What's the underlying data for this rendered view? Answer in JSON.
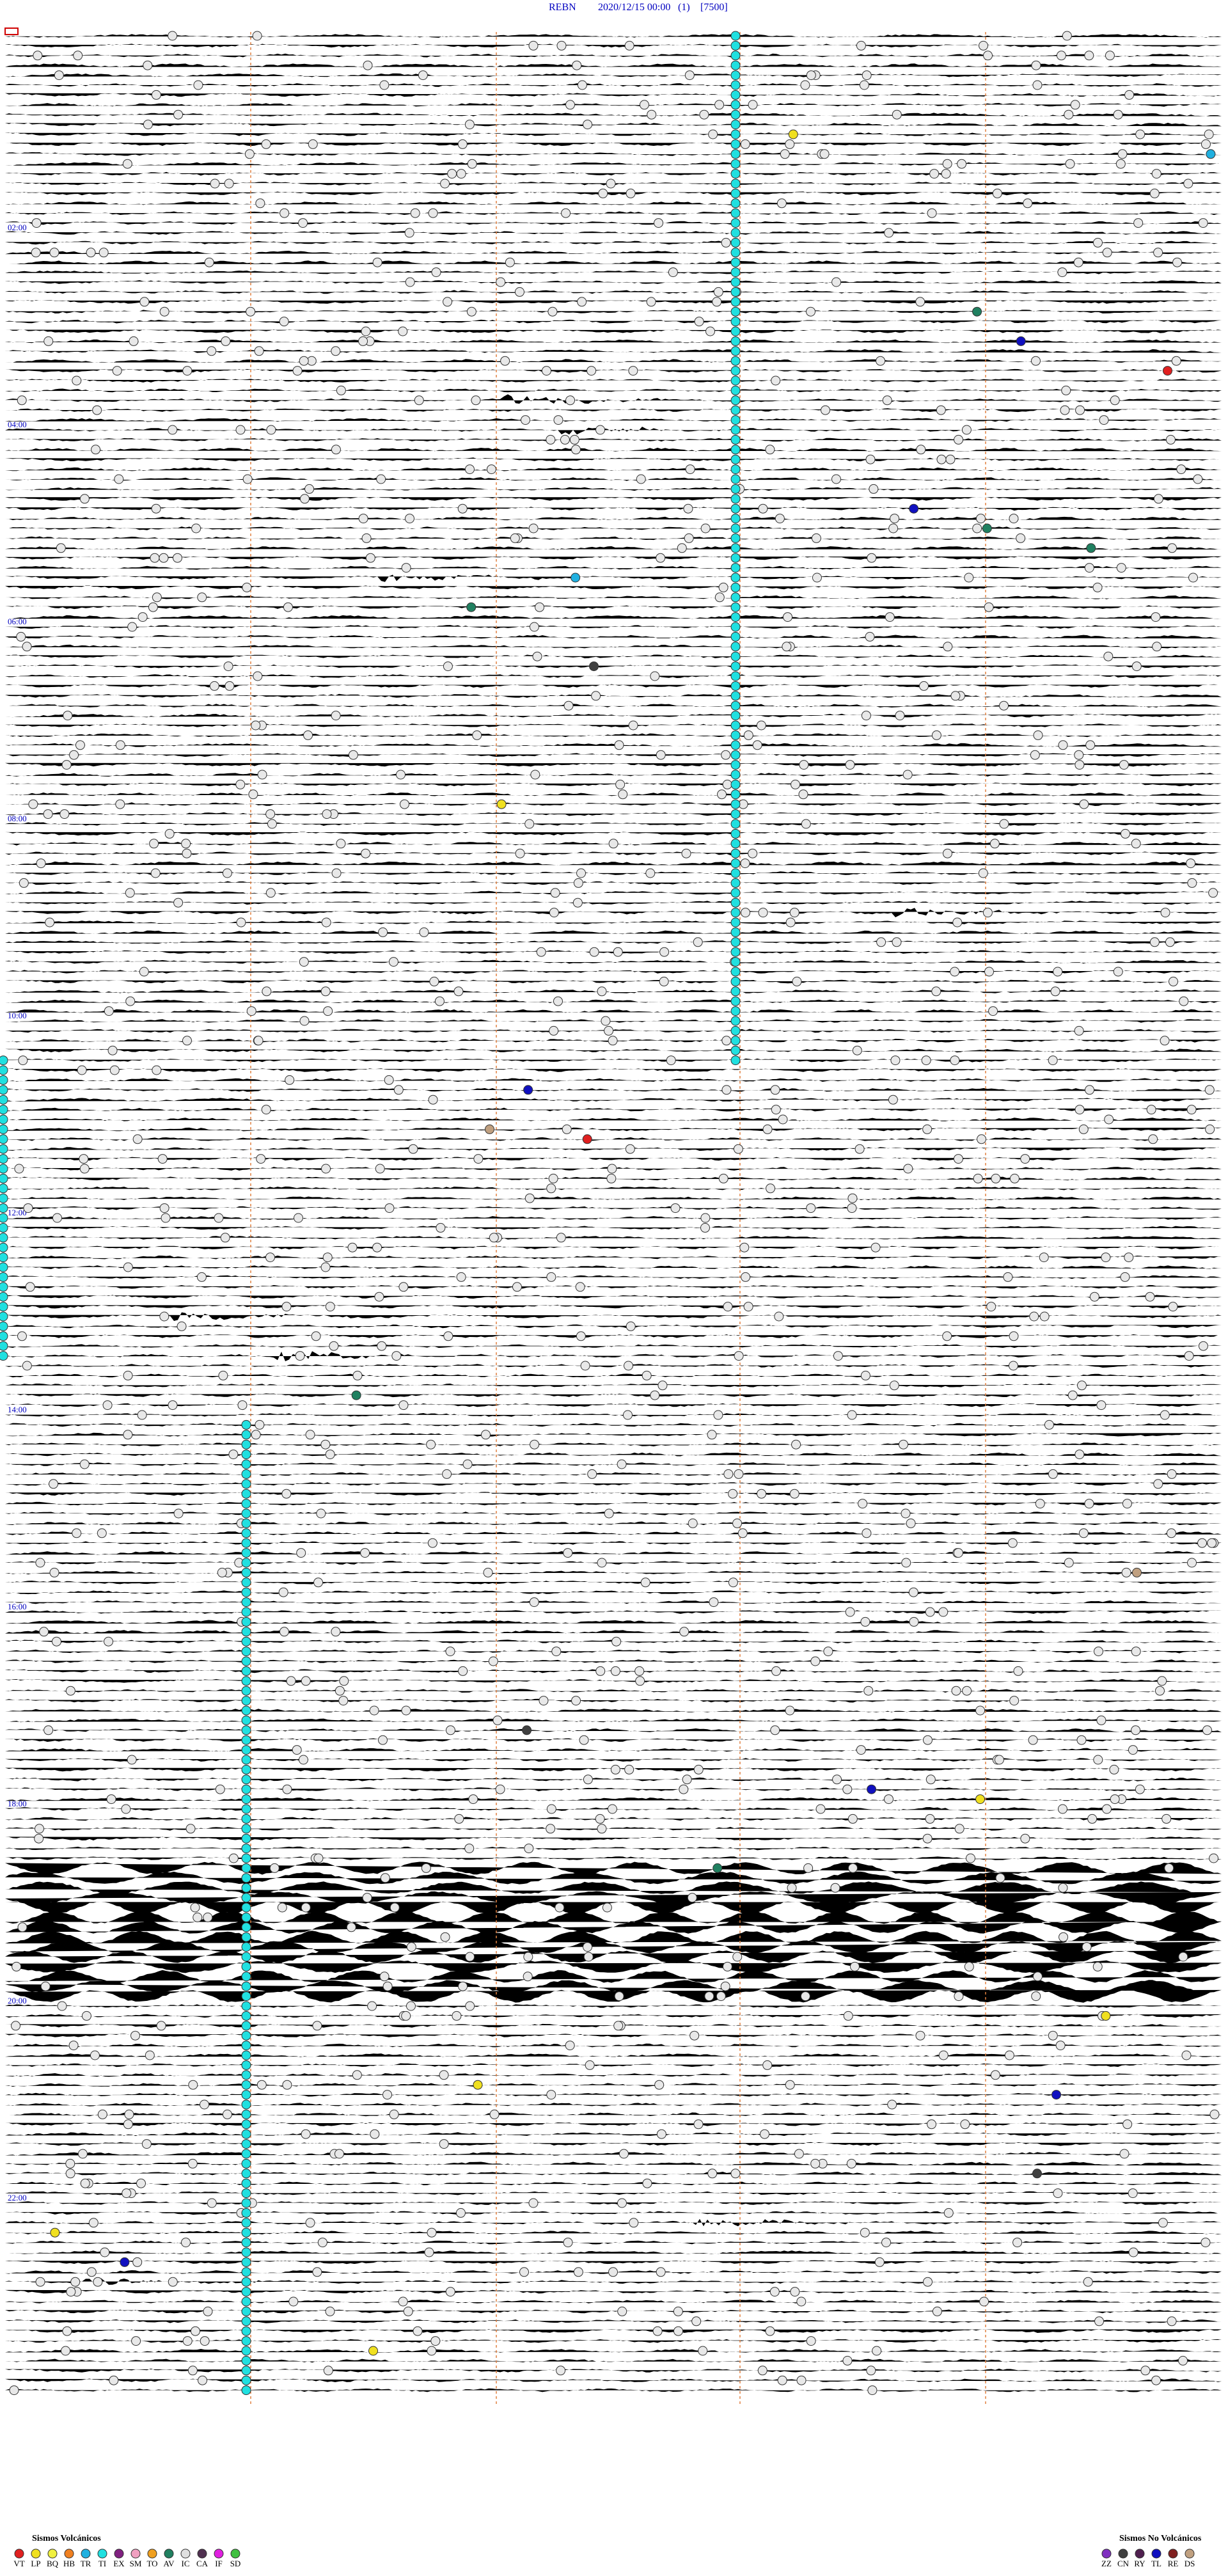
{
  "header": {
    "station": "REBN",
    "datetime": "2020/12/15 00:00",
    "channel": "(1)",
    "scale": "[7500]"
  },
  "time_labels": [
    "02:00",
    "04:00",
    "06:00",
    "08:00",
    "10:00",
    "12:00",
    "14:00",
    "16:00",
    "18:00",
    "20:00",
    "22:00"
  ],
  "legend": {
    "volcanic": {
      "title": "Sismos Volcánicos",
      "items": [
        {
          "code": "VT",
          "color": "#e02020"
        },
        {
          "code": "LP",
          "color": "#f0e020"
        },
        {
          "code": "BQ",
          "color": "#f0f040"
        },
        {
          "code": "HB",
          "color": "#f08020"
        },
        {
          "code": "TR",
          "color": "#20b0e0"
        },
        {
          "code": "TI",
          "color": "#20e0e0"
        },
        {
          "code": "EX",
          "color": "#802080"
        },
        {
          "code": "SM",
          "color": "#f0a0c0"
        },
        {
          "code": "TO",
          "color": "#f0a020"
        },
        {
          "code": "AV",
          "color": "#208060"
        },
        {
          "code": "IC",
          "color": "#e0e0e0"
        },
        {
          "code": "CA",
          "color": "#503050"
        },
        {
          "code": "IF",
          "color": "#e020e0"
        },
        {
          "code": "SD",
          "color": "#40c040"
        }
      ]
    },
    "nonvolcanic": {
      "title": "Sismos No Volcánicos",
      "items": [
        {
          "code": "ZZ",
          "color": "#8030c0"
        },
        {
          "code": "CN",
          "color": "#404040"
        },
        {
          "code": "RY",
          "color": "#502050"
        },
        {
          "code": "TL",
          "color": "#1010c0"
        },
        {
          "code": "RE",
          "color": "#802020"
        },
        {
          "code": "DS",
          "color": "#c0a080"
        }
      ]
    }
  }
}
